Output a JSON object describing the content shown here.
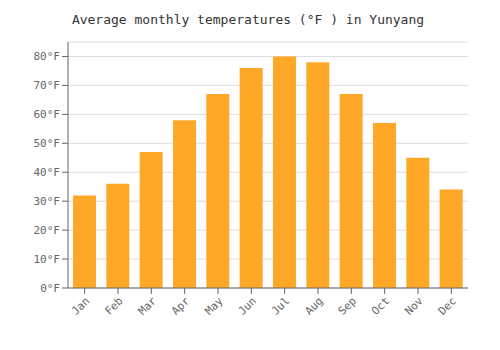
{
  "chart_data": {
    "type": "bar",
    "title": "Average monthly temperatures (°F ) in Yunyang",
    "categories": [
      "Jan",
      "Feb",
      "Mar",
      "Apr",
      "May",
      "Jun",
      "Jul",
      "Aug",
      "Sep",
      "Oct",
      "Nov",
      "Dec"
    ],
    "values": [
      32,
      36,
      47,
      58,
      67,
      76,
      80,
      78,
      67,
      57,
      45,
      34
    ],
    "color": "#FFA726",
    "ylim": [
      0,
      85
    ],
    "yticks": [
      {
        "value": 0,
        "label": "0°F"
      },
      {
        "value": 10,
        "label": "10°F"
      },
      {
        "value": 20,
        "label": "20°F"
      },
      {
        "value": 30,
        "label": "30°F"
      },
      {
        "value": 40,
        "label": "40°F"
      },
      {
        "value": 50,
        "label": "50°F"
      },
      {
        "value": 60,
        "label": "60°F"
      },
      {
        "value": 70,
        "label": "70°F"
      },
      {
        "value": 80,
        "label": "80°F"
      }
    ],
    "grid": true
  }
}
